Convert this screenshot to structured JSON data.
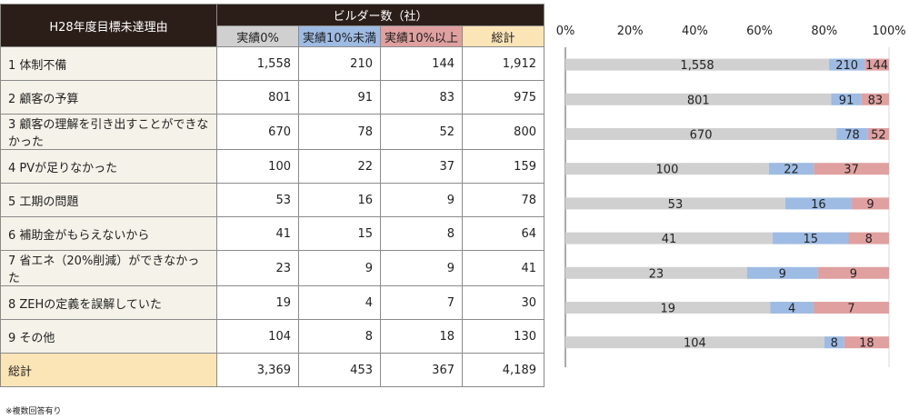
{
  "table": {
    "title": "H28年度目標未達理由",
    "group_header": "ビルダー数（社）",
    "columns": [
      "実績0%",
      "実績10%未満",
      "実績10%以上",
      "総計"
    ],
    "rows": [
      {
        "label": "1 体制不備",
        "values": [
          "1,558",
          "210",
          "144",
          "1,912"
        ]
      },
      {
        "label": "2 顧客の予算",
        "values": [
          "801",
          "91",
          "83",
          "975"
        ]
      },
      {
        "label": "3 顧客の理解を引き出すことができなかった",
        "values": [
          "670",
          "78",
          "52",
          "800"
        ]
      },
      {
        "label": "4 PVが足りなかった",
        "values": [
          "100",
          "22",
          "37",
          "159"
        ]
      },
      {
        "label": "5 工期の問題",
        "values": [
          "53",
          "16",
          "9",
          "78"
        ]
      },
      {
        "label": "6 補助金がもらえないから",
        "values": [
          "41",
          "15",
          "8",
          "64"
        ]
      },
      {
        "label": "7 省エネ（20%削減）ができなかった",
        "values": [
          "23",
          "9",
          "9",
          "41"
        ]
      },
      {
        "label": "8 ZEHの定義を誤解していた",
        "values": [
          "19",
          "4",
          "7",
          "30"
        ]
      },
      {
        "label": "9 その他",
        "values": [
          "104",
          "8",
          "18",
          "130"
        ]
      }
    ],
    "total": {
      "label": "総計",
      "values": [
        "3,369",
        "453",
        "367",
        "4,189"
      ]
    },
    "footnote": "※複数回答有り"
  },
  "chart_data": {
    "type": "bar",
    "stacked": "100%",
    "orientation": "horizontal",
    "categories": [
      "1 体制不備",
      "2 顧客の予算",
      "3 顧客の理解を引き出すことができなかった",
      "4 PVが足りなかった",
      "5 工期の問題",
      "6 補助金がもらえないから",
      "7 省エネ（20%削減）ができなかった",
      "8 ZEHの定義を誤解していた",
      "9 その他"
    ],
    "series": [
      {
        "values": [
          1558,
          801,
          670,
          100,
          53,
          41,
          23,
          19,
          104
        ],
        "color": "#d0d0d0"
      },
      {
        "values": [
          210,
          91,
          78,
          22,
          16,
          15,
          9,
          4,
          8
        ],
        "color": "#9dbbe3"
      },
      {
        "values": [
          144,
          83,
          52,
          37,
          9,
          8,
          9,
          7,
          18
        ],
        "color": "#e0a0a0"
      }
    ],
    "x_ticks": [
      "0%",
      "20%",
      "40%",
      "60%",
      "80%",
      "100%"
    ],
    "xlim": [
      0,
      100
    ],
    "grid": false
  }
}
